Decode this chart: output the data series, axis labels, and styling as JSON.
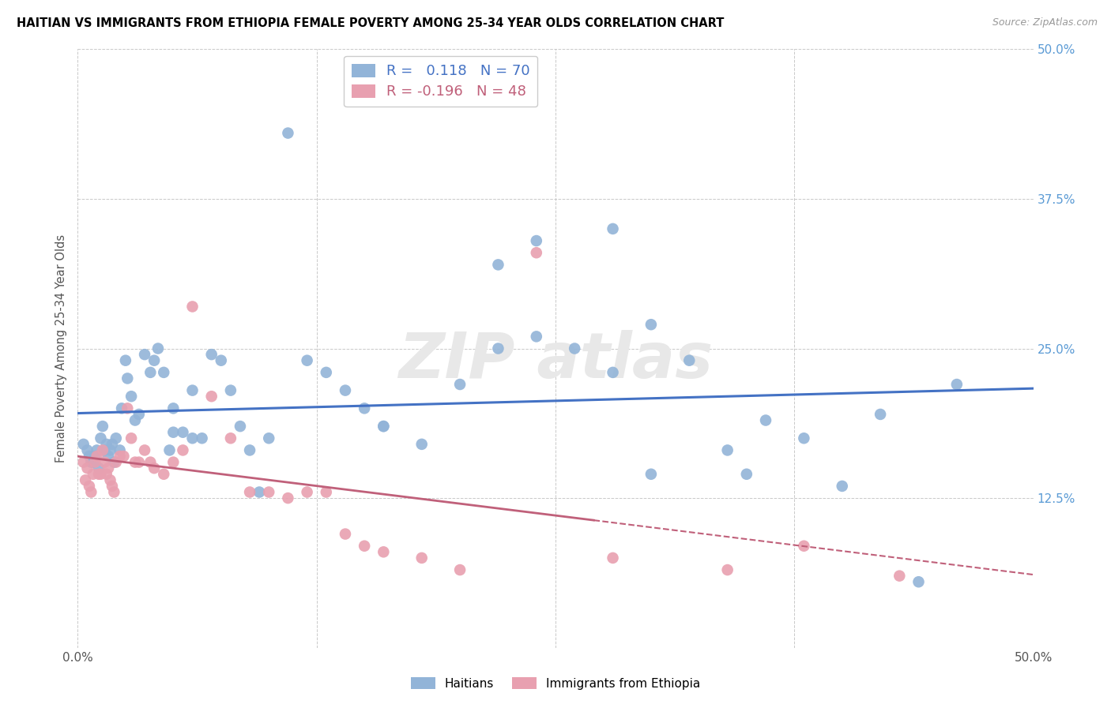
{
  "title": "HAITIAN VS IMMIGRANTS FROM ETHIOPIA FEMALE POVERTY AMONG 25-34 YEAR OLDS CORRELATION CHART",
  "source": "Source: ZipAtlas.com",
  "ylabel": "Female Poverty Among 25-34 Year Olds",
  "xlim": [
    0.0,
    0.5
  ],
  "ylim": [
    0.0,
    0.5
  ],
  "xticks": [
    0.0,
    0.125,
    0.25,
    0.375,
    0.5
  ],
  "xtick_labels": [
    "0.0%",
    "",
    "",
    "",
    "50.0%"
  ],
  "yticks": [
    0.0,
    0.125,
    0.25,
    0.375,
    0.5
  ],
  "ytick_labels_right": [
    "",
    "12.5%",
    "25.0%",
    "37.5%",
    "50.0%"
  ],
  "blue_R": 0.118,
  "blue_N": 70,
  "pink_R": -0.196,
  "pink_N": 48,
  "blue_color": "#92b4d8",
  "pink_color": "#e8a0b0",
  "blue_line_color": "#4472c4",
  "pink_line_color": "#c0607a",
  "blue_x": [
    0.003,
    0.005,
    0.006,
    0.007,
    0.008,
    0.009,
    0.01,
    0.011,
    0.012,
    0.013,
    0.014,
    0.015,
    0.016,
    0.017,
    0.018,
    0.019,
    0.02,
    0.022,
    0.023,
    0.025,
    0.026,
    0.028,
    0.03,
    0.032,
    0.035,
    0.038,
    0.04,
    0.042,
    0.045,
    0.048,
    0.05,
    0.055,
    0.06,
    0.065,
    0.07,
    0.075,
    0.08,
    0.085,
    0.09,
    0.095,
    0.1,
    0.11,
    0.12,
    0.13,
    0.15,
    0.16,
    0.18,
    0.2,
    0.22,
    0.24,
    0.26,
    0.28,
    0.3,
    0.32,
    0.34,
    0.36,
    0.38,
    0.4,
    0.42,
    0.44,
    0.05,
    0.06,
    0.14,
    0.16,
    0.22,
    0.24,
    0.28,
    0.3,
    0.35,
    0.46
  ],
  "blue_y": [
    0.17,
    0.165,
    0.16,
    0.155,
    0.155,
    0.16,
    0.165,
    0.15,
    0.175,
    0.185,
    0.165,
    0.17,
    0.16,
    0.165,
    0.17,
    0.155,
    0.175,
    0.165,
    0.2,
    0.24,
    0.225,
    0.21,
    0.19,
    0.195,
    0.245,
    0.23,
    0.24,
    0.25,
    0.23,
    0.165,
    0.2,
    0.18,
    0.175,
    0.175,
    0.245,
    0.24,
    0.215,
    0.185,
    0.165,
    0.13,
    0.175,
    0.43,
    0.24,
    0.23,
    0.2,
    0.185,
    0.17,
    0.22,
    0.25,
    0.26,
    0.25,
    0.23,
    0.27,
    0.24,
    0.165,
    0.19,
    0.175,
    0.135,
    0.195,
    0.055,
    0.18,
    0.215,
    0.215,
    0.185,
    0.32,
    0.34,
    0.35,
    0.145,
    0.145,
    0.22
  ],
  "pink_x": [
    0.003,
    0.004,
    0.005,
    0.006,
    0.007,
    0.008,
    0.009,
    0.01,
    0.011,
    0.012,
    0.013,
    0.014,
    0.015,
    0.016,
    0.017,
    0.018,
    0.019,
    0.02,
    0.022,
    0.024,
    0.026,
    0.028,
    0.03,
    0.032,
    0.035,
    0.038,
    0.04,
    0.045,
    0.05,
    0.055,
    0.06,
    0.07,
    0.08,
    0.09,
    0.1,
    0.11,
    0.12,
    0.13,
    0.14,
    0.15,
    0.16,
    0.18,
    0.2,
    0.24,
    0.28,
    0.34,
    0.38,
    0.43
  ],
  "pink_y": [
    0.155,
    0.14,
    0.15,
    0.135,
    0.13,
    0.145,
    0.155,
    0.16,
    0.145,
    0.145,
    0.165,
    0.155,
    0.145,
    0.15,
    0.14,
    0.135,
    0.13,
    0.155,
    0.16,
    0.16,
    0.2,
    0.175,
    0.155,
    0.155,
    0.165,
    0.155,
    0.15,
    0.145,
    0.155,
    0.165,
    0.285,
    0.21,
    0.175,
    0.13,
    0.13,
    0.125,
    0.13,
    0.13,
    0.095,
    0.085,
    0.08,
    0.075,
    0.065,
    0.33,
    0.075,
    0.065,
    0.085,
    0.06
  ],
  "pink_solid_xlim": [
    0.0,
    0.27
  ],
  "pink_dashed_xlim": [
    0.27,
    0.5
  ]
}
